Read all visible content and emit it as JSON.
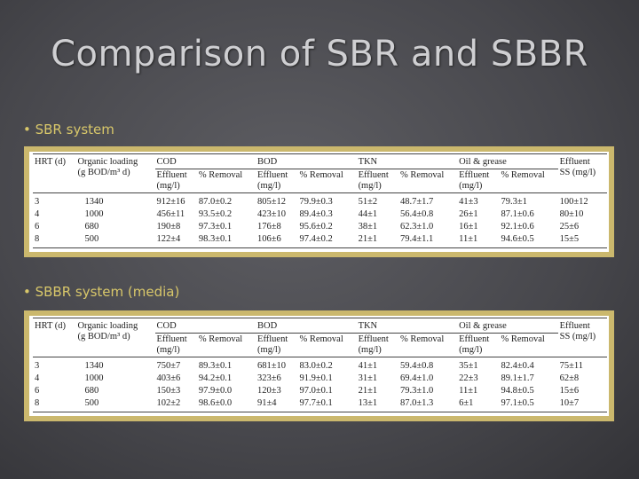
{
  "title": "Comparison of SBR and SBBR",
  "tables": [
    {
      "label": "SBR system",
      "header": {
        "hrt": "HRT (d)",
        "loading": "Organic loading\n(g BOD/m³ d)",
        "groups": [
          "COD",
          "BOD",
          "TKN",
          "Oil & grease"
        ],
        "effluent": "Effluent\n(mg/l)",
        "removal": "% Removal",
        "ss": "Effluent\nSS (mg/l)"
      },
      "rows": [
        [
          "3",
          "1340",
          "912±16",
          "87.0±0.2",
          "805±12",
          "79.9±0.3",
          "51±2",
          "48.7±1.7",
          "41±3",
          "79.3±1",
          "100±12"
        ],
        [
          "4",
          "1000",
          "456±11",
          "93.5±0.2",
          "423±10",
          "89.4±0.3",
          "44±1",
          "56.4±0.8",
          "26±1",
          "87.1±0.6",
          "80±10"
        ],
        [
          "6",
          "680",
          "190±8",
          "97.3±0.1",
          "176±8",
          "95.6±0.2",
          "38±1",
          "62.3±1.0",
          "16±1",
          "92.1±0.6",
          "25±6"
        ],
        [
          "8",
          "500",
          "122±4",
          "98.3±0.1",
          "106±6",
          "97.4±0.2",
          "21±1",
          "79.4±1.1",
          "11±1",
          "94.6±0.5",
          "15±5"
        ]
      ]
    },
    {
      "label": "SBBR system (media)",
      "header": {
        "hrt": "HRT (d)",
        "loading": "Organic loading\n(g BOD/m³ d)",
        "groups": [
          "COD",
          "BOD",
          "TKN",
          "Oil & grease"
        ],
        "effluent": "Effluent\n(mg/l)",
        "removal": "% Removal",
        "ss": "Effluent\nSS (mg/l)"
      },
      "rows": [
        [
          "3",
          "1340",
          "750±7",
          "89.3±0.1",
          "681±10",
          "83.0±0.2",
          "41±1",
          "59.4±0.8",
          "35±1",
          "82.4±0.4",
          "75±11"
        ],
        [
          "4",
          "1000",
          "403±6",
          "94.2±0.1",
          "323±6",
          "91.9±0.1",
          "31±1",
          "69.4±1.0",
          "22±3",
          "89.1±1.7",
          "62±8"
        ],
        [
          "6",
          "680",
          "150±3",
          "97.9±0.0",
          "120±3",
          "97.0±0.1",
          "21±1",
          "79.3±1.0",
          "11±1",
          "94.8±0.5",
          "15±6"
        ],
        [
          "8",
          "500",
          "102±2",
          "98.6±0.0",
          "91±4",
          "97.7±0.1",
          "13±1",
          "87.0±1.3",
          "6±1",
          "97.1±0.5",
          "10±7"
        ]
      ]
    }
  ]
}
